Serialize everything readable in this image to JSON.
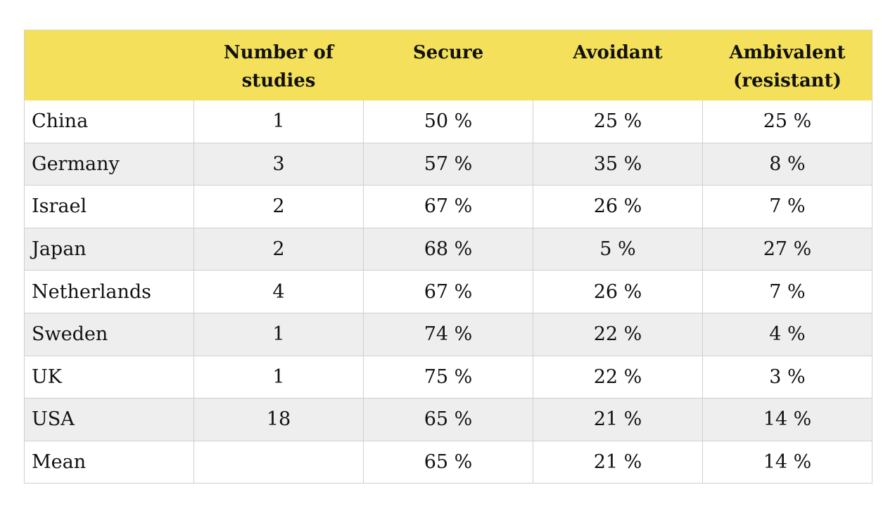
{
  "table": {
    "headers": {
      "country": "",
      "studies": "Number of studies",
      "secure": "Secure",
      "avoidant": "Avoidant",
      "ambivalent": "Ambivalent (resistant)"
    },
    "rows": [
      {
        "country": "China",
        "studies": "1",
        "secure": "50 %",
        "avoidant": "25 %",
        "ambivalent": "25 %"
      },
      {
        "country": "Germany",
        "studies": "3",
        "secure": "57 %",
        "avoidant": "35 %",
        "ambivalent": "8 %"
      },
      {
        "country": "Israel",
        "studies": "2",
        "secure": "67 %",
        "avoidant": "26 %",
        "ambivalent": "7 %"
      },
      {
        "country": "Japan",
        "studies": "2",
        "secure": "68 %",
        "avoidant": "5 %",
        "ambivalent": "27 %"
      },
      {
        "country": "Netherlands",
        "studies": "4",
        "secure": "67 %",
        "avoidant": "26 %",
        "ambivalent": "7 %"
      },
      {
        "country": "Sweden",
        "studies": "1",
        "secure": "74 %",
        "avoidant": "22 %",
        "ambivalent": "4 %"
      },
      {
        "country": "UK",
        "studies": "1",
        "secure": "75 %",
        "avoidant": "22 %",
        "ambivalent": "3 %"
      },
      {
        "country": "USA",
        "studies": "18",
        "secure": "65 %",
        "avoidant": "21 %",
        "ambivalent": "14 %"
      },
      {
        "country": "Mean",
        "studies": "",
        "secure": "65 %",
        "avoidant": "21 %",
        "ambivalent": "14 %"
      }
    ]
  },
  "colors": {
    "header_background": "#f4e05a",
    "shaded_row": "#eeeeee",
    "plain_row": "#ffffff",
    "border": "#cfcfcf"
  }
}
